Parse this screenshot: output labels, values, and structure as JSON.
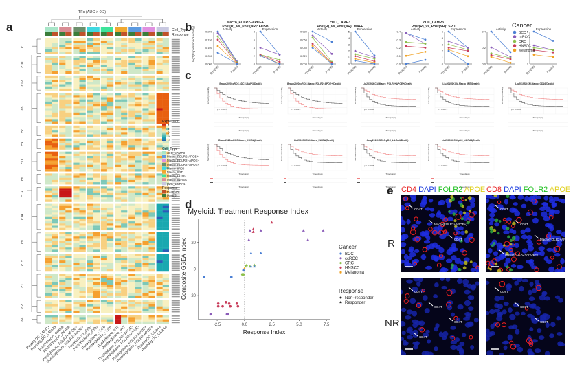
{
  "panels": {
    "a": "a",
    "b": "b",
    "c": "c",
    "d": "d",
    "e": "e"
  },
  "heatmap": {
    "top_title": "TFs (AUC > 0.2)",
    "annotation_labels": [
      "Cell_Type",
      "Response"
    ],
    "cell_type_colors": [
      "#a8e6c8",
      "#d98c94",
      "#6b8f6b",
      "#3fd8e0",
      "#3ee49a",
      "#f0a830",
      "#5c9ae0",
      "#e090e0",
      "#c8c8e0"
    ],
    "response_colors": {
      "PostNR": "#c0522a",
      "PostR": "#3a7d3a"
    },
    "clusters": [
      {
        "id": "c1",
        "rows": 7
      },
      {
        "id": "c10",
        "rows": 8
      },
      {
        "id": "c12",
        "rows": 7
      },
      {
        "id": "c8",
        "rows": 14
      },
      {
        "id": "c7",
        "rows": 5
      },
      {
        "id": "c3",
        "rows": 5
      },
      {
        "id": "c11",
        "rows": 9
      },
      {
        "id": "c6",
        "rows": 5
      },
      {
        "id": "c13",
        "rows": 7
      },
      {
        "id": "c14",
        "rows": 12
      },
      {
        "id": "c9",
        "rows": 9
      },
      {
        "id": "c15",
        "rows": 8
      },
      {
        "id": "c1b",
        "label": "c1",
        "rows": 11
      },
      {
        "id": "c2",
        "rows": 6
      },
      {
        "id": "c4",
        "rows": 4
      }
    ],
    "column_labels": [
      "PostR|cDC_LAMP3",
      "PostNR|cDC_LAMP3",
      "PostR|Macro_INHBA",
      "PostNR|Macro_INHBA",
      "PostR|Macro_FOLR2+APOE+",
      "PostNR|Macro_FOLR2+APOE+",
      "PostR|Macro_IFI30",
      "PostNR|Macro_IFI30",
      "PostR|Macro_CD16",
      "PostNR|Macro_CD16",
      "PostR|Macro_IFIT",
      "PostNR|Macro_IFIT",
      "PostR|Macro_FOLR2+APOE-",
      "PostNR|Macro_FOLR2+APOE-",
      "PostR|Macro_FOLR2-APOE+",
      "PostNR|Macro_FOLR2-APOE+",
      "PostR|pDC_LILRA4",
      "PostNR|pDC_LILRA4"
    ],
    "legend": {
      "expression_title": "Expression",
      "expression_ticks": [
        "4",
        "2",
        "0",
        "-2",
        "-4"
      ],
      "cell_type_title": "Cell_Type",
      "cell_types": [
        {
          "label": "cDC_LAMP3",
          "color": "#a8e6c8"
        },
        {
          "label": "Macro_FOLR2-APOE+",
          "color": "#5c9ae0"
        },
        {
          "label": "Macro_FOLR2+APOE-",
          "color": "#e090e0"
        },
        {
          "label": "Macro_FOLR2+APOE+",
          "color": "#6b8f6b"
        },
        {
          "label": "Macro_IFI30",
          "color": "#3fd8e0"
        },
        {
          "label": "Macro_IFIT",
          "color": "#f0a830"
        },
        {
          "label": "Macro_CD16",
          "color": "#3ee49a"
        },
        {
          "label": "Macro_INHBA",
          "color": "#d98c94"
        },
        {
          "label": "pDC_LILRA4",
          "color": "#c8c8e0"
        }
      ],
      "response_title": "Response",
      "responses": [
        {
          "label": "Post(NR)",
          "color": "#c0522a"
        },
        {
          "label": "Post(R)",
          "color": "#3a7d3a"
        }
      ]
    }
  },
  "panel_b": {
    "ylabel": "log2(ExpressionorActivity)",
    "groups": [
      {
        "title_line1": "Macro_FOLR2+APOE+",
        "title_line2": "Post(R)_vs_Post(NR): FOSB",
        "sub": [
          {
            "name": "Activity",
            "yticks": [
              "0.000",
              "0.050",
              "0.100",
              "0.150",
              "0.200"
            ],
            "ymax": 0.2,
            "pr": [
              0.2,
              0.19,
              0.17,
              0.15,
              0.11,
              0.07
            ],
            "pnr": [
              0.015,
              0.013,
              0.01,
              0.005,
              0.002,
              0.0
            ]
          },
          {
            "name": "Expression",
            "yticks": [
              "0",
              "2",
              "4",
              "6",
              "8"
            ],
            "ymax": 8,
            "pr": [
              8,
              4,
              2.3,
              2.2,
              2.0,
              2.0
            ],
            "pnr": [
              2.3,
              2.3,
              1.0,
              0.5,
              0.1,
              0.0
            ]
          }
        ]
      },
      {
        "title_line1": "cDC_LAMP3",
        "title_line2": "Post(R)_vs_Post(NR): MAFF",
        "sub": [
          {
            "name": "Activity",
            "yticks": [
              "0.000",
              "0.020",
              "0.040",
              "0.060",
              "0.080"
            ],
            "ymax": 0.08,
            "pr": [
              0.08,
              0.07,
              0.065,
              0.05,
              0.045,
              0.04
            ],
            "pnr": [
              0.055,
              0.025,
              0.005,
              0.003,
              0.001,
              0.0
            ]
          },
          {
            "name": "Expression",
            "yticks": [
              "0",
              "1",
              "2",
              "3",
              "4",
              "5"
            ],
            "ymax": 5,
            "pr": [
              5,
              2,
              1.5,
              1.2,
              0.8,
              0.5
            ],
            "pnr": [
              1.3,
              1.0,
              0.8,
              0.4,
              0.2,
              0.0
            ]
          }
        ]
      },
      {
        "title_line1": "cDC_LAMP3",
        "title_line2": "Post(R)_vs_Post(NR): SPI1",
        "sub": [
          {
            "name": "Activity",
            "yticks": [
              "0.0",
              "0.1",
              "0.2",
              "0.3",
              "0.4"
            ],
            "ymax": 0.4,
            "pr": [
              0.38,
              0.38,
              0.27,
              0.22,
              0.1,
              0.0
            ],
            "pnr": [
              0.3,
              0.25,
              0.25,
              0.2,
              0.15,
              0.05
            ]
          },
          {
            "name": "Expression",
            "yticks": [
              "0",
              "1",
              "2",
              "3",
              "4",
              "5"
            ],
            "ymax": 5,
            "pr": [
              5,
              3.5,
              3,
              2.5,
              2.2,
              2.0
            ],
            "pnr": [
              2.5,
              2.5,
              2.2,
              2.0,
              1.2,
              0.0
            ]
          }
        ]
      },
      {
        "title_line1": "",
        "title_line2": "",
        "sub": [
          {
            "name": "Activity",
            "yticks": [
              "0.0",
              "0.2",
              "0.4"
            ],
            "ymax": 0.55,
            "pr": [
              0.55,
              0.28,
              0.18,
              0.15,
              0.12
            ],
            "pnr": [
              0.2,
              0.12,
              0.1,
              0.08,
              0.02
            ]
          },
          {
            "name": "Expression",
            "yticks": [
              "2",
              "5"
            ],
            "ymax": 7,
            "pr": [
              7,
              4,
              3.5,
              3,
              2.0
            ],
            "pnr": [
              5,
              3,
              3,
              2.5,
              1.5
            ]
          }
        ]
      }
    ],
    "xlabels": [
      "Post(NR)",
      "Post(R)"
    ],
    "legend": {
      "title": "Cancer",
      "items": [
        {
          "label": "BCC",
          "color": "#4a7fd4"
        },
        {
          "label": "ccRCC",
          "color": "#8a5cb8"
        },
        {
          "label": "CRC",
          "color": "#8cc04a"
        },
        {
          "label": "HNSCC",
          "color": "#c83c5a"
        },
        {
          "label": "Melanoma",
          "color": "#f0a020"
        }
      ]
    }
  },
  "panel_c": {
    "plots": [
      {
        "title": "Braun2020ccRCC.cDC_LAMP3(Death)",
        "pval": "p = 0.0037"
      },
      {
        "title": "Braun2020ccRCC.Macro_FOLR2+APOE+(Death)",
        "pval": "p = 0.0019"
      },
      {
        "title": "Liu2019SKCM.Macro_FOLR2+APOE+(Death)",
        "pval": "p = 0.0008"
      },
      {
        "title": "Liu2019SKCM.Macro_IFIT(Death)",
        "pval": "p = 0.0072"
      },
      {
        "title": "Liu2019SKCM.Macro_CD16(Death)",
        "pval": "p = 0.0095"
      },
      {
        "title": "Braun2020ccRCC.Macro_INHBA(Death)",
        "pval": "p = 0.0037"
      },
      {
        "title": "Liu2019SKCM.Macro_INHBA(Death)",
        "pval": "p = 0.0037"
      },
      {
        "title": "Jung2019NSCLC.pDC_LILRA4(Death)",
        "pval": "p = 0.0006"
      },
      {
        "title": "Liu2019SKCM.pDC_LILRA4(Death)",
        "pval": "p = 0.0043"
      }
    ],
    "ylabel": "Survival probability",
    "xlabel": "Time(days)",
    "strata_label": "Strata",
    "colors": {
      "high": "#f08080",
      "low": "#555555"
    }
  },
  "chart_data": {
    "type": "scatter",
    "title": "Myeloid: Treatment Response Index",
    "xlabel": "Response Index",
    "ylabel": "Composite GSEA Index",
    "xlim": [
      -4.2,
      7.8
    ],
    "ylim": [
      -38,
      38
    ],
    "xticks": [
      "-2.5",
      "0.0",
      "2.5",
      "5.0",
      "7.5"
    ],
    "xtick_values": [
      -2.5,
      0,
      2.5,
      5,
      7.5
    ],
    "yticks": [
      "-20",
      "0",
      "20"
    ],
    "ytick_values": [
      -20,
      0,
      20
    ],
    "reference_lines": {
      "x": 0,
      "y": 0
    },
    "legend_cancer": {
      "title": "Cancer",
      "items": [
        {
          "label": "BCC",
          "color": "#4a7fd4"
        },
        {
          "label": "ccRCC",
          "color": "#8a5cb8"
        },
        {
          "label": "CRC",
          "color": "#8cc04a"
        },
        {
          "label": "HNSCC",
          "color": "#c83c5a"
        },
        {
          "label": "Melanoma",
          "color": "#f0a020"
        }
      ]
    },
    "legend_response": {
      "title": "Response",
      "items": [
        {
          "label": "Non−responder",
          "shape": "circle"
        },
        {
          "label": "Responder",
          "shape": "triangle"
        }
      ]
    },
    "points": [
      {
        "x": 2.5,
        "y": 35,
        "cancer": "HNSCC",
        "resp": "R"
      },
      {
        "x": 0.5,
        "y": 29,
        "cancer": "ccRCC",
        "resp": "R"
      },
      {
        "x": 0.8,
        "y": 30,
        "cancer": "HNSCC",
        "resp": "R"
      },
      {
        "x": 0.8,
        "y": 28,
        "cancer": "HNSCC",
        "resp": "R"
      },
      {
        "x": 1.5,
        "y": 29,
        "cancer": "ccRCC",
        "resp": "R"
      },
      {
        "x": 5.4,
        "y": 29,
        "cancer": "ccRCC",
        "resp": "R"
      },
      {
        "x": 7.2,
        "y": 29,
        "cancer": "ccRCC",
        "resp": "R"
      },
      {
        "x": 0.4,
        "y": 22,
        "cancer": "ccRCC",
        "resp": "R"
      },
      {
        "x": 5.8,
        "y": 22,
        "cancer": "ccRCC",
        "resp": "R"
      },
      {
        "x": 0.6,
        "y": 12,
        "cancer": "BCC",
        "resp": "R"
      },
      {
        "x": 1.5,
        "y": 12,
        "cancer": "BCC",
        "resp": "R"
      },
      {
        "x": 0.2,
        "y": 3,
        "cancer": "CRC",
        "resp": "R"
      },
      {
        "x": 0.1,
        "y": 2,
        "cancer": "CRC",
        "resp": "R"
      },
      {
        "x": 0.5,
        "y": 2,
        "cancer": "CRC",
        "resp": "R"
      },
      {
        "x": 0.9,
        "y": 3,
        "cancer": "CRC",
        "resp": "R"
      },
      {
        "x": 0.6,
        "y": 2,
        "cancer": "BCC",
        "resp": "R"
      },
      {
        "x": 0.9,
        "y": 2,
        "cancer": "BCC",
        "resp": "R"
      },
      {
        "x": 0.0,
        "y": 0.5,
        "cancer": "Melanoma",
        "resp": "R"
      },
      {
        "x": -0.1,
        "y": -1,
        "cancer": "BCC",
        "resp": "NR"
      },
      {
        "x": -0.2,
        "y": -4,
        "cancer": "CRC",
        "resp": "NR"
      },
      {
        "x": -0.1,
        "y": -4,
        "cancer": "CRC",
        "resp": "NR"
      },
      {
        "x": -3.7,
        "y": -6,
        "cancer": "BCC",
        "resp": "NR"
      },
      {
        "x": -1.2,
        "y": -6,
        "cancer": "BCC",
        "resp": "NR"
      },
      {
        "x": -2.4,
        "y": -26,
        "cancer": "HNSCC",
        "resp": "NR"
      },
      {
        "x": -2.4,
        "y": -28,
        "cancer": "HNSCC",
        "resp": "NR"
      },
      {
        "x": -2.0,
        "y": -28,
        "cancer": "HNSCC",
        "resp": "NR"
      },
      {
        "x": -1.7,
        "y": -25,
        "cancer": "HNSCC",
        "resp": "NR"
      },
      {
        "x": -1.4,
        "y": -26,
        "cancer": "HNSCC",
        "resp": "NR"
      },
      {
        "x": -1.3,
        "y": -28,
        "cancer": "HNSCC",
        "resp": "NR"
      },
      {
        "x": -0.7,
        "y": -26,
        "cancer": "HNSCC",
        "resp": "NR"
      },
      {
        "x": -0.6,
        "y": -28,
        "cancer": "HNSCC",
        "resp": "NR"
      },
      {
        "x": -3.1,
        "y": -34,
        "cancer": "ccRCC",
        "resp": "NR"
      },
      {
        "x": -1.6,
        "y": -34,
        "cancer": "ccRCC",
        "resp": "NR"
      },
      {
        "x": -1.5,
        "y": -34,
        "cancer": "ccRCC",
        "resp": "NR"
      }
    ]
  },
  "panel_e": {
    "headers": [
      [
        {
          "t": "CD4 ",
          "c": "#e82020"
        },
        {
          "t": "DAPI ",
          "c": "#2040e0"
        },
        {
          "t": "FOLR2 ",
          "c": "#20c020"
        },
        {
          "t": "APOE",
          "c": "#e0d020"
        }
      ],
      [
        {
          "t": "CD8 ",
          "c": "#e82020"
        },
        {
          "t": "DAPI ",
          "c": "#2040e0"
        },
        {
          "t": "FOLR2 ",
          "c": "#20c020"
        },
        {
          "t": "APOE",
          "c": "#e0d020"
        }
      ]
    ],
    "row_labels": [
      "R",
      "NR"
    ],
    "annotations": {
      "r_cd4": [
        "CD4T",
        "Macro(FOLR2+APOE+)",
        "CD4T"
      ],
      "r_cd8": [
        "CD8T",
        "CD8T",
        "Macro(FOLR2+APOE+)",
        "Macro(FOLR2+APOE+)"
      ],
      "nr_cd4": [
        "CD4T",
        "CD4T",
        "CD4T",
        "CD4T"
      ],
      "nr_cd8": [
        "CD8T",
        "CD8T",
        "CD8T"
      ]
    }
  }
}
